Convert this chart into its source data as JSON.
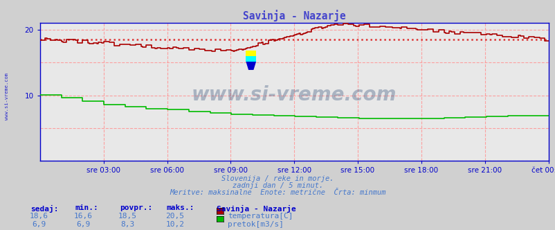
{
  "title": "Savinja - Nazarje",
  "title_color": "#4444cc",
  "bg_color": "#d0d0d0",
  "plot_bg_color": "#e8e8e8",
  "grid_color": "#ff9999",
  "axis_color": "#0000cc",
  "xlabel_ticks": [
    "sre 03:00",
    "sre 06:00",
    "sre 09:00",
    "sre 12:00",
    "sre 15:00",
    "sre 18:00",
    "sre 21:00",
    "čet 00:00"
  ],
  "xlim": [
    0,
    287
  ],
  "ylim": [
    0,
    21
  ],
  "yticks": [
    10,
    20
  ],
  "temp_avg": 18.5,
  "flow_avg": 8.3,
  "temp_min": 16.6,
  "temp_max": 20.5,
  "flow_min": 6.9,
  "flow_max": 10.2,
  "temp_sedaj": 18.6,
  "flow_sedaj": 6.9,
  "watermark_color": "#1a3a6a",
  "footer_color": "#4477cc",
  "temp_line_color": "#aa0000",
  "flow_line_color": "#00bb00",
  "avg_line_color": "#dd3333",
  "label_color": "#4477cc",
  "subtitle1": "Slovenija / reke in morje.",
  "subtitle2": "zadnji dan / 5 minut.",
  "subtitle3": "Meritve: maksinalne  Enote: metrične  Črta: minmum"
}
